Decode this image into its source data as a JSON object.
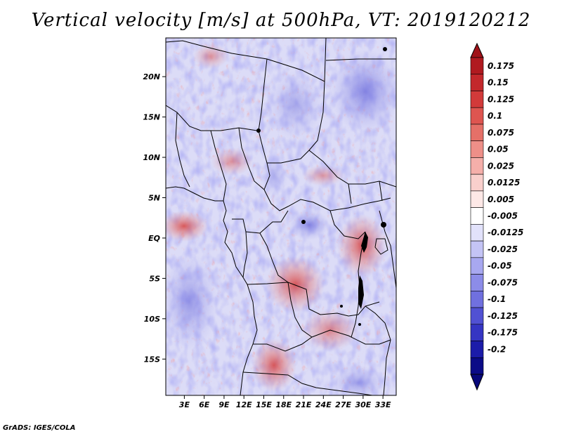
{
  "title": "Vertical velocity [m/s] at 500hPa, VT: 2019120212",
  "credit": "GrADS: IGES/COLA",
  "map": {
    "lat_labels": [
      "20N",
      "15N",
      "10N",
      "5N",
      "EQ",
      "5S",
      "10S",
      "15S"
    ],
    "lat_values": [
      20,
      15,
      10,
      5,
      0,
      -5,
      -10,
      -15
    ],
    "lon_labels": [
      "3E",
      "6E",
      "9E",
      "12E",
      "15E",
      "18E",
      "21E",
      "24E",
      "27E",
      "30E",
      "33E"
    ],
    "lon_values": [
      3,
      6,
      9,
      12,
      15,
      18,
      21,
      24,
      27,
      30,
      33
    ],
    "lat_range": [
      -19.5,
      24.8
    ],
    "lon_range": [
      0.2,
      35.0
    ]
  },
  "colorbar": {
    "labels": [
      "0.175",
      "0.15",
      "0.125",
      "0.1",
      "0.075",
      "0.05",
      "0.025",
      "0.0125",
      "0.005",
      "-0.005",
      "-0.0125",
      "-0.025",
      "-0.05",
      "-0.075",
      "-0.1",
      "-0.125",
      "-0.175",
      "-0.2"
    ],
    "colors": [
      "#b01a20",
      "#c3282c",
      "#d23a3a",
      "#de5550",
      "#e57068",
      "#ee8f88",
      "#f5afaa",
      "#f9cfcc",
      "#fde8e6",
      "#ffffff",
      "#e2e2fb",
      "#c4c4f5",
      "#a8a8f0",
      "#8c8ce8",
      "#7070df",
      "#5151d3",
      "#3535c3",
      "#1c1ca9",
      "#0b0b87"
    ],
    "top_color": "#a01218",
    "bottom_color": "#08087a"
  }
}
